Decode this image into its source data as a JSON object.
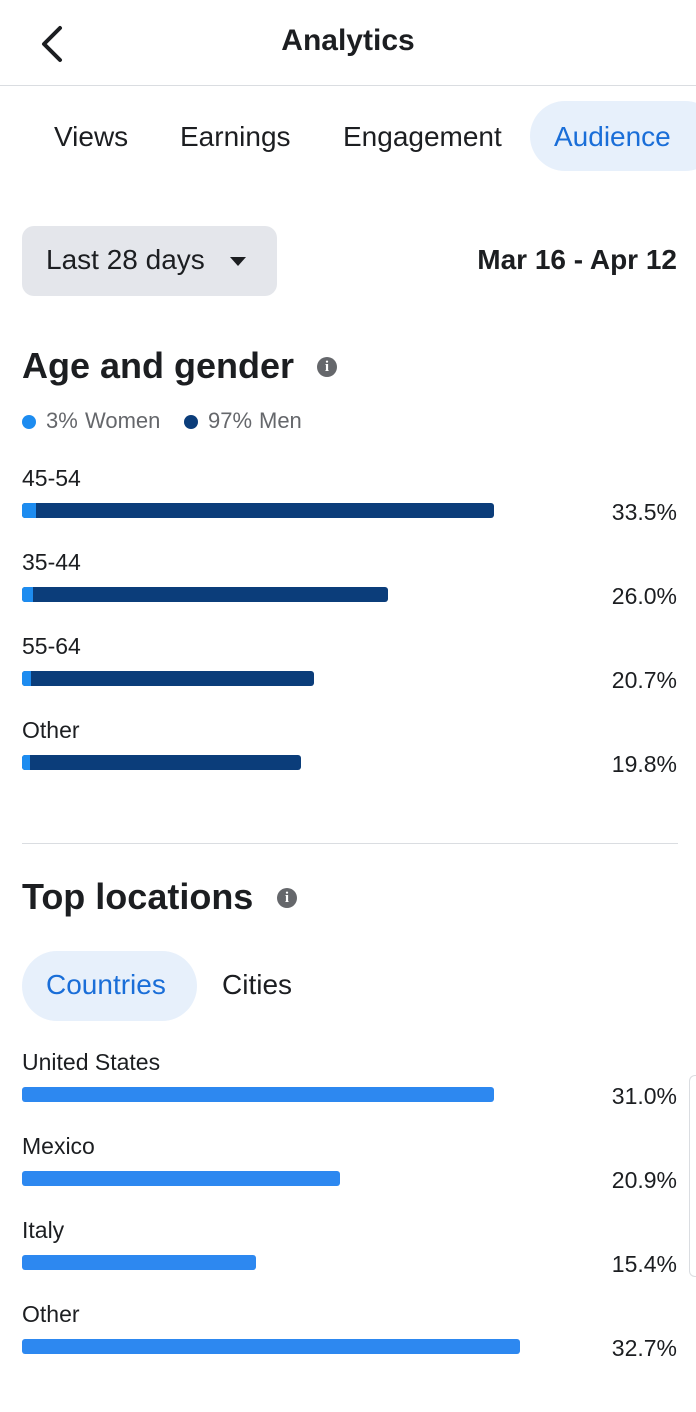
{
  "header": {
    "title": "Analytics"
  },
  "tabs": [
    "Views",
    "Earnings",
    "Engagement",
    "Audience"
  ],
  "active_tab": 3,
  "date_range": {
    "selector": "Last 28 days",
    "dates": "Mar 16 - Apr 12"
  },
  "age_gender": {
    "title": "Age and gender",
    "legend": [
      {
        "value": 3,
        "value_label": "3%",
        "name": "Women",
        "color": "#1d8cf0"
      },
      {
        "value": 97,
        "value_label": "97%",
        "name": "Men",
        "color": "#0b3d7a"
      }
    ],
    "rows": [
      {
        "label": "45-54",
        "value": 33.5,
        "value_label": "33.5%"
      },
      {
        "label": "35-44",
        "value": 26.0,
        "value_label": "26.0%"
      },
      {
        "label": "55-64",
        "value": 20.7,
        "value_label": "20.7%"
      },
      {
        "label": "Other",
        "value": 19.8,
        "value_label": "19.8%"
      }
    ]
  },
  "top_locations": {
    "title": "Top locations",
    "subtabs": [
      "Countries",
      "Cities"
    ],
    "active_subtab": 0,
    "color": "#2d88f0",
    "rows": [
      {
        "label": "United States",
        "value": 31.0,
        "value_label": "31.0%"
      },
      {
        "label": "Mexico",
        "value": 20.9,
        "value_label": "20.9%"
      },
      {
        "label": "Italy",
        "value": 15.4,
        "value_label": "15.4%"
      },
      {
        "label": "Other",
        "value": 32.7,
        "value_label": "32.7%"
      }
    ]
  }
}
